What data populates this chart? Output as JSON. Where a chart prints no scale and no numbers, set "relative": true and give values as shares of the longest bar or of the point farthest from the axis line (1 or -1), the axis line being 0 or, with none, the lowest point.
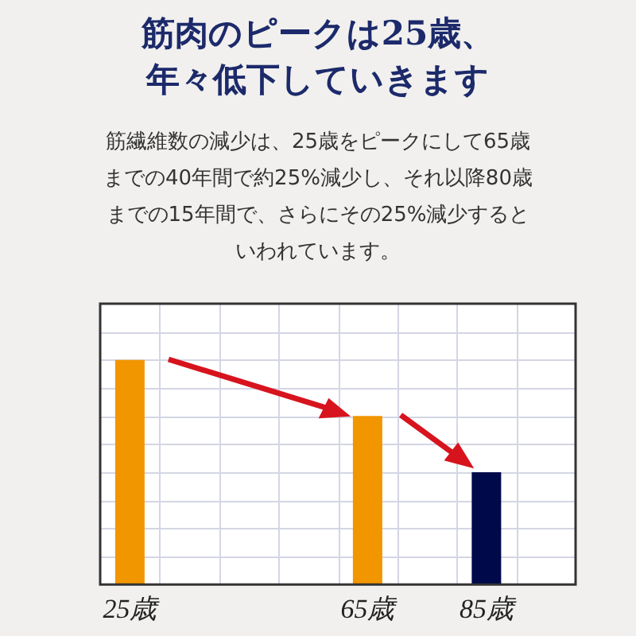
{
  "chart_data": {
    "type": "bar",
    "title": "筋肉のピークは25歳、年々低下していきます",
    "subtitle": "筋繊維数の減少は、25歳をピークにして65歳までの40年間で約25%減少し、それ以降80歳までの15年間で、さらにその25%減少するといわれています。",
    "categories": [
      "25歳",
      null,
      null,
      null,
      "65歳",
      null,
      "85歳",
      null
    ],
    "values": [
      1,
      null,
      null,
      null,
      0.75,
      null,
      0.5,
      null
    ],
    "colors": [
      "#f29600",
      null,
      null,
      null,
      "#f29600",
      null,
      "#000a4a",
      null
    ],
    "relative": true,
    "grid": true,
    "legend": false
  }
}
